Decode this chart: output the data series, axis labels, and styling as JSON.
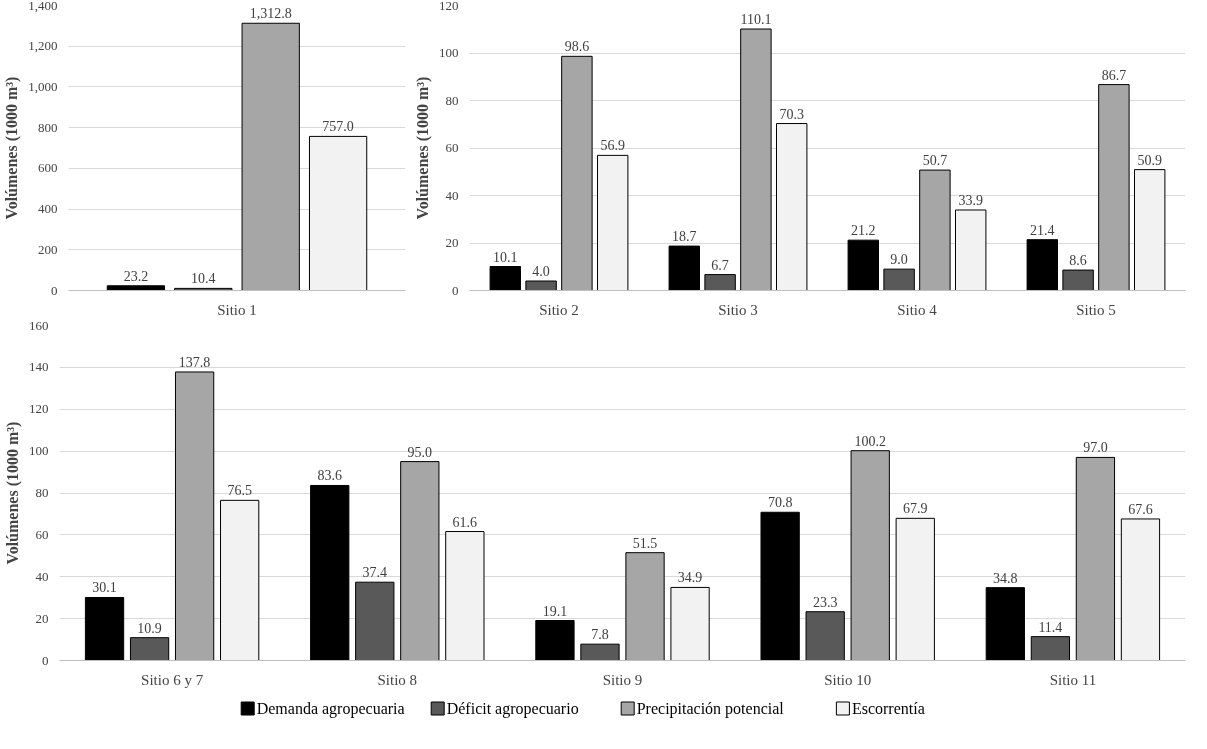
{
  "chart_data": [
    {
      "type": "bar",
      "ylabel": "Volúmenes (1000 m³)",
      "categories": [
        "Sitio 1"
      ],
      "ylim": [
        0,
        1400
      ],
      "yticks": [
        0,
        200,
        400,
        600,
        800,
        {
          "value": 1000,
          "label": "1,000"
        },
        {
          "value": 1200,
          "label": "1,200"
        },
        {
          "value": 1400,
          "label": "1,400"
        }
      ],
      "grid": "y",
      "series": [
        {
          "color": "#000000",
          "values": [
            23.2
          ],
          "value_labels": [
            "23.2"
          ]
        },
        {
          "color": "#595959",
          "values": [
            10.4
          ],
          "value_labels": [
            "10.4"
          ]
        },
        {
          "color": "#a6a6a6",
          "values": [
            1312.8
          ],
          "value_labels": [
            "1,312.8"
          ]
        },
        {
          "color": "#f2f2f2",
          "values": [
            757.0
          ],
          "value_labels": [
            "757.0"
          ]
        }
      ]
    },
    {
      "type": "bar",
      "ylabel": "Volúmenes (1000 m³)",
      "categories": [
        "Sitio 2",
        "Sitio 3",
        "Sitio 4",
        "Sitio 5"
      ],
      "ylim": [
        0,
        120
      ],
      "yticks": [
        0,
        20,
        40,
        60,
        80,
        100,
        120
      ],
      "grid": "y",
      "series": [
        {
          "color": "#000000",
          "values": [
            10.1,
            18.7,
            21.2,
            21.4
          ],
          "value_labels": [
            "10.1",
            "18.7",
            "21.2",
            "21.4"
          ]
        },
        {
          "color": "#595959",
          "values": [
            4.0,
            6.7,
            9.0,
            8.6
          ],
          "value_labels": [
            "4.0",
            "6.7",
            "9.0",
            "8.6"
          ]
        },
        {
          "color": "#a6a6a6",
          "values": [
            98.6,
            110.1,
            50.7,
            86.7
          ],
          "value_labels": [
            "98.6",
            "110.1",
            "50.7",
            "86.7"
          ]
        },
        {
          "color": "#f2f2f2",
          "values": [
            56.9,
            70.3,
            33.9,
            50.9
          ],
          "value_labels": [
            "56.9",
            "70.3",
            "33.9",
            "50.9"
          ]
        }
      ]
    },
    {
      "type": "bar",
      "ylabel": "Volúmenes (1000 m³)",
      "categories": [
        "Sitio 6 y 7",
        "Sitio 8",
        "Sitio 9",
        "Sitio 10",
        "Sitio 11"
      ],
      "ylim": [
        0,
        160
      ],
      "yticks": [
        0,
        20,
        40,
        60,
        80,
        100,
        120,
        140,
        160
      ],
      "grid": "y",
      "legend": "bottom",
      "series": [
        {
          "name": "Demanda agropecuaria",
          "color": "#000000",
          "values": [
            30.1,
            83.6,
            19.1,
            70.8,
            34.8
          ],
          "value_labels": [
            "30.1",
            "83.6",
            "19.1",
            "70.8",
            "34.8"
          ]
        },
        {
          "name": "Déficit agropecuario",
          "color": "#595959",
          "values": [
            10.9,
            37.4,
            7.8,
            23.3,
            11.4
          ],
          "value_labels": [
            "10.9",
            "37.4",
            "7.8",
            "23.3",
            "11.4"
          ]
        },
        {
          "name": "Precipitación potencial",
          "color": "#a6a6a6",
          "values": [
            137.8,
            95.0,
            51.5,
            100.2,
            97.0
          ],
          "value_labels": [
            "137.8",
            "95.0",
            "51.5",
            "100.2",
            "97.0"
          ]
        },
        {
          "name": "Escorrentía",
          "color": "#f2f2f2",
          "values": [
            76.5,
            61.6,
            34.9,
            67.9,
            67.6
          ],
          "value_labels": [
            "76.5",
            "61.6",
            "34.9",
            "67.9",
            "67.6"
          ]
        }
      ]
    }
  ]
}
